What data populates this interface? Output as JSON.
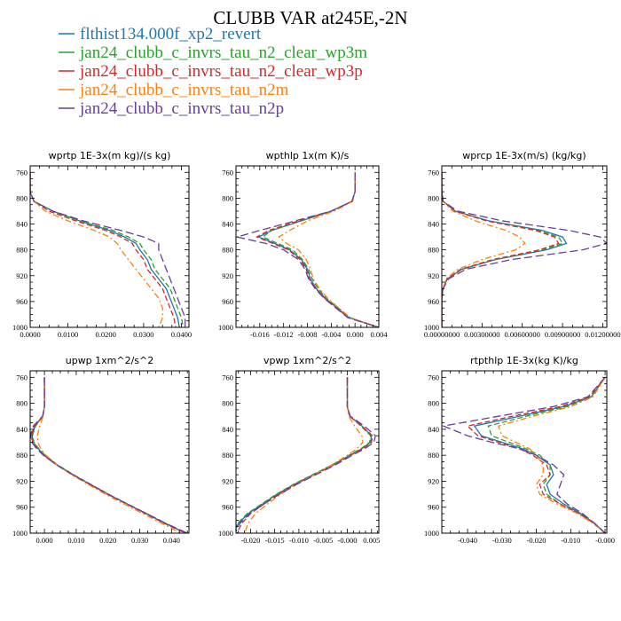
{
  "title": "CLUBB VAR at245E,-2N",
  "legend": [
    {
      "name": "flthist134.000f_xp2_revert",
      "color": "#1f77b4",
      "dash": "solid"
    },
    {
      "name": "jan24_clubb_c_invrs_tau_n2_clear_wp3m",
      "color": "#2ca02c",
      "dash": "dashed"
    },
    {
      "name": "jan24_clubb_c_invrs_tau_n2_clear_wp3p",
      "color": "#d62728",
      "dash": "dashed"
    },
    {
      "name": "jan24_clubb_c_invrs_tau_n2m",
      "color": "#ff7f0e",
      "dash": "dashdot"
    },
    {
      "name": "jan24_clubb_c_invrs_tau_n2p",
      "color": "#6a3d9a",
      "dash": "longdash"
    }
  ],
  "chart_data": [
    {
      "type": "line",
      "title": "wprtp  1E-3x(m kg)/(s kg)",
      "xlim": [
        0.0,
        0.042
      ],
      "ylim": [
        1000,
        750
      ],
      "xticks": [
        0.0,
        0.01,
        0.02,
        0.03,
        0.04
      ],
      "xtick_labels": [
        "0.0000",
        "0.0100",
        "0.0200",
        "0.0300",
        "0.0400"
      ],
      "yticks": [
        760,
        800,
        840,
        880,
        920,
        960,
        1000
      ],
      "levels": [
        760,
        790,
        805,
        820,
        835,
        850,
        860,
        870,
        880,
        895,
        910,
        925,
        940,
        955,
        970,
        985,
        1000
      ],
      "series": [
        {
          "name": "flthist134.000f_xp2_revert",
          "values": [
            0.0,
            0.0,
            0.001,
            0.006,
            0.013,
            0.021,
            0.025,
            0.028,
            0.029,
            0.031,
            0.032,
            0.034,
            0.036,
            0.037,
            0.038,
            0.039,
            0.0395
          ]
        },
        {
          "name": "jan24_clubb_c_invrs_tau_n2_clear_wp3m",
          "values": [
            0.0,
            0.0,
            0.001,
            0.006,
            0.013,
            0.022,
            0.026,
            0.029,
            0.03,
            0.032,
            0.033,
            0.035,
            0.037,
            0.038,
            0.039,
            0.04,
            0.0405
          ]
        },
        {
          "name": "jan24_clubb_c_invrs_tau_n2_clear_wp3p",
          "values": [
            0.0,
            0.0,
            0.001,
            0.005,
            0.012,
            0.02,
            0.024,
            0.027,
            0.028,
            0.03,
            0.031,
            0.033,
            0.035,
            0.036,
            0.037,
            0.038,
            0.0385
          ]
        },
        {
          "name": "jan24_clubb_c_invrs_tau_n2m",
          "values": [
            0.0,
            0.0,
            0.001,
            0.004,
            0.01,
            0.017,
            0.021,
            0.023,
            0.024,
            0.026,
            0.028,
            0.03,
            0.032,
            0.034,
            0.035,
            0.035,
            0.034
          ]
        },
        {
          "name": "jan24_clubb_c_invrs_tau_n2p",
          "values": [
            0.0,
            0.0,
            0.001,
            0.006,
            0.014,
            0.024,
            0.03,
            0.034,
            0.034,
            0.035,
            0.036,
            0.037,
            0.038,
            0.039,
            0.04,
            0.041,
            0.041
          ]
        }
      ]
    },
    {
      "type": "line",
      "title": "wpthlp  1x(m K)/s",
      "xlim": [
        -0.02,
        0.004
      ],
      "ylim": [
        1000,
        750
      ],
      "xticks": [
        -0.016,
        -0.012,
        -0.008,
        -0.004,
        0.0,
        0.004
      ],
      "xtick_labels": [
        "-0.016",
        "-0.012",
        "-0.008",
        "-0.004",
        "0.000",
        "0.004"
      ],
      "yticks": [
        760,
        800,
        840,
        880,
        920,
        960,
        1000
      ],
      "levels": [
        760,
        790,
        805,
        820,
        835,
        850,
        860,
        870,
        880,
        895,
        910,
        925,
        940,
        955,
        970,
        985,
        1000
      ],
      "series": [
        {
          "name": "flthist134.000f_xp2_revert",
          "values": [
            0.0,
            0.0,
            -0.0005,
            -0.004,
            -0.009,
            -0.014,
            -0.0162,
            -0.0135,
            -0.011,
            -0.009,
            -0.008,
            -0.0075,
            -0.0065,
            -0.005,
            -0.003,
            -0.001,
            0.004
          ]
        },
        {
          "name": "jan24_clubb_c_invrs_tau_n2_clear_wp3m",
          "values": [
            0.0,
            0.0,
            -0.0005,
            -0.004,
            -0.009,
            -0.014,
            -0.0155,
            -0.013,
            -0.0105,
            -0.0088,
            -0.0078,
            -0.0072,
            -0.0062,
            -0.0048,
            -0.0028,
            -0.0008,
            0.004
          ]
        },
        {
          "name": "jan24_clubb_c_invrs_tau_n2_clear_wp3p",
          "values": [
            0.0,
            0.0,
            -0.0005,
            -0.004,
            -0.0095,
            -0.0145,
            -0.0165,
            -0.0138,
            -0.0112,
            -0.0092,
            -0.0082,
            -0.0077,
            -0.0066,
            -0.0051,
            -0.0031,
            -0.0011,
            0.004
          ]
        },
        {
          "name": "jan24_clubb_c_invrs_tau_n2m",
          "values": [
            0.0,
            0.0,
            -0.0004,
            -0.0035,
            -0.008,
            -0.011,
            -0.0128,
            -0.0115,
            -0.0095,
            -0.0082,
            -0.0075,
            -0.007,
            -0.006,
            -0.0046,
            -0.0027,
            -0.0008,
            0.004
          ]
        },
        {
          "name": "jan24_clubb_c_invrs_tau_n2p",
          "values": [
            0.0,
            0.0,
            -0.0005,
            -0.004,
            -0.01,
            -0.016,
            -0.0198,
            -0.015,
            -0.012,
            -0.0095,
            -0.0084,
            -0.0078,
            -0.0067,
            -0.0052,
            -0.0032,
            -0.0012,
            0.004
          ]
        }
      ]
    },
    {
      "type": "line",
      "title": "wprcp  1E-3x(m/s) (kg/kg)",
      "xlim": [
        0.0,
        0.0123
      ],
      "ylim": [
        1000,
        750
      ],
      "xticks": [
        0.0,
        0.003,
        0.006,
        0.009,
        0.012
      ],
      "xtick_labels": [
        "0.00000000",
        "0.00300000",
        "0.00600000",
        "0.00900000",
        "0.01200000"
      ],
      "yticks": [
        760,
        800,
        840,
        880,
        920,
        960,
        1000
      ],
      "levels": [
        760,
        790,
        805,
        820,
        835,
        850,
        860,
        870,
        880,
        895,
        910,
        925,
        940,
        955,
        970,
        985,
        1000
      ],
      "series": [
        {
          "name": "flthist134.000f_xp2_revert",
          "values": [
            0.0,
            0.0,
            0.0001,
            0.001,
            0.0035,
            0.0075,
            0.009,
            0.0093,
            0.0078,
            0.004,
            0.0015,
            0.0004,
            0.0001,
            0.0,
            0.0,
            0.0,
            0.0
          ]
        },
        {
          "name": "jan24_clubb_c_invrs_tau_n2_clear_wp3m",
          "values": [
            0.0,
            0.0,
            0.0001,
            0.001,
            0.0034,
            0.0072,
            0.0087,
            0.009,
            0.0075,
            0.0039,
            0.0015,
            0.0004,
            0.0001,
            0.0,
            0.0,
            0.0,
            0.0
          ]
        },
        {
          "name": "jan24_clubb_c_invrs_tau_n2_clear_wp3p",
          "values": [
            0.0,
            0.0,
            0.0001,
            0.001,
            0.0033,
            0.007,
            0.0084,
            0.0087,
            0.0073,
            0.0038,
            0.0014,
            0.0004,
            0.0001,
            0.0,
            0.0,
            0.0,
            0.0
          ]
        },
        {
          "name": "jan24_clubb_c_invrs_tau_n2m",
          "values": [
            0.0,
            0.0,
            0.0001,
            0.0008,
            0.0025,
            0.0048,
            0.0058,
            0.0062,
            0.0055,
            0.003,
            0.0012,
            0.0003,
            0.0001,
            0.0,
            0.0,
            0.0,
            0.0
          ]
        },
        {
          "name": "jan24_clubb_c_invrs_tau_n2p",
          "values": [
            0.0,
            0.0,
            0.0001,
            0.0012,
            0.0045,
            0.0095,
            0.0118,
            0.0123,
            0.0105,
            0.0052,
            0.0018,
            0.0005,
            0.0001,
            0.0,
            0.0,
            0.0,
            0.0
          ]
        }
      ]
    },
    {
      "type": "line",
      "title": "upwp  1xm^2/s^2",
      "xlim": [
        -0.0045,
        0.0455
      ],
      "ylim": [
        1000,
        750
      ],
      "xticks": [
        0.0,
        0.01,
        0.02,
        0.03,
        0.04
      ],
      "xtick_labels": [
        "0.000",
        "0.010",
        "0.020",
        "0.030",
        "0.040"
      ],
      "yticks": [
        760,
        800,
        840,
        880,
        920,
        960,
        1000
      ],
      "levels": [
        760,
        790,
        805,
        820,
        835,
        850,
        860,
        870,
        880,
        895,
        910,
        925,
        940,
        955,
        970,
        985,
        1000
      ],
      "series": [
        {
          "name": "flthist134.000f_xp2_revert",
          "values": [
            0.0,
            0.0,
            0.0,
            -0.0005,
            -0.003,
            -0.004,
            -0.0035,
            -0.002,
            0.0,
            0.004,
            0.009,
            0.0145,
            0.02,
            0.026,
            0.032,
            0.038,
            0.0445
          ]
        },
        {
          "name": "jan24_clubb_c_invrs_tau_n2_clear_wp3m",
          "values": [
            0.0,
            0.0,
            0.0,
            -0.0005,
            -0.0028,
            -0.0038,
            -0.0033,
            -0.0018,
            0.0002,
            0.0042,
            0.0092,
            0.0147,
            0.0202,
            0.0262,
            0.0322,
            0.0382,
            0.0447
          ]
        },
        {
          "name": "jan24_clubb_c_invrs_tau_n2_clear_wp3p",
          "values": [
            0.0,
            0.0,
            0.0,
            -0.0005,
            -0.0032,
            -0.0042,
            -0.0037,
            -0.0022,
            -0.0002,
            0.0038,
            0.0088,
            0.0143,
            0.0198,
            0.0258,
            0.0318,
            0.0378,
            0.0443
          ]
        },
        {
          "name": "jan24_clubb_c_invrs_tau_n2m",
          "values": [
            0.0,
            0.0,
            0.0,
            -0.0004,
            -0.0015,
            -0.0022,
            -0.0021,
            -0.0012,
            0.0005,
            0.004,
            0.0085,
            0.0138,
            0.0192,
            0.025,
            0.031,
            0.037,
            0.043
          ]
        },
        {
          "name": "jan24_clubb_c_invrs_tau_n2p",
          "values": [
            0.0,
            0.0,
            0.0,
            -0.0006,
            -0.0035,
            -0.0045,
            -0.004,
            -0.0025,
            -0.0003,
            0.0038,
            0.0089,
            0.0145,
            0.0201,
            0.0261,
            0.0322,
            0.0383,
            0.045
          ]
        }
      ]
    },
    {
      "type": "line",
      "title": "vpwp  1xm^2/s^2",
      "xlim": [
        -0.023,
        0.0065
      ],
      "ylim": [
        1000,
        750
      ],
      "xticks": [
        -0.02,
        -0.015,
        -0.01,
        -0.005,
        0.0,
        0.005
      ],
      "xtick_labels": [
        "-0.020",
        "-0.015",
        "-0.010",
        "-0.005",
        "-0.000",
        "0.005"
      ],
      "yticks": [
        760,
        800,
        840,
        880,
        920,
        960,
        1000
      ],
      "levels": [
        760,
        790,
        805,
        820,
        835,
        850,
        860,
        870,
        880,
        895,
        910,
        925,
        940,
        955,
        970,
        985,
        1000
      ],
      "series": [
        {
          "name": "flthist134.000f_xp2_revert",
          "values": [
            0.0,
            0.0,
            0.0,
            0.0005,
            0.003,
            0.005,
            0.0048,
            0.003,
            0.0005,
            -0.003,
            -0.007,
            -0.011,
            -0.0145,
            -0.0175,
            -0.0205,
            -0.0225,
            -0.0235
          ]
        },
        {
          "name": "jan24_clubb_c_invrs_tau_n2_clear_wp3m",
          "values": [
            0.0,
            0.0,
            0.0,
            0.0005,
            0.0028,
            0.0048,
            0.0046,
            0.0028,
            0.0003,
            -0.0032,
            -0.0072,
            -0.0112,
            -0.0147,
            -0.0177,
            -0.0207,
            -0.0227,
            -0.0238
          ]
        },
        {
          "name": "jan24_clubb_c_invrs_tau_n2_clear_wp3p",
          "values": [
            0.0,
            0.0,
            0.0,
            0.0005,
            0.003,
            0.0052,
            0.005,
            0.0032,
            0.0007,
            -0.0028,
            -0.0068,
            -0.0108,
            -0.0143,
            -0.0172,
            -0.02,
            -0.0218,
            -0.0228
          ]
        },
        {
          "name": "jan24_clubb_c_invrs_tau_n2m",
          "values": [
            0.0,
            0.0,
            0.0,
            0.0003,
            0.0015,
            0.003,
            0.0032,
            0.002,
            0.0,
            -0.0032,
            -0.0068,
            -0.0105,
            -0.0138,
            -0.0165,
            -0.019,
            -0.0205,
            -0.0212
          ]
        },
        {
          "name": "jan24_clubb_c_invrs_tau_n2p",
          "values": [
            0.0,
            0.0,
            0.0,
            0.0006,
            0.0035,
            0.0058,
            0.0055,
            0.0036,
            0.001,
            -0.0025,
            -0.0065,
            -0.0105,
            -0.014,
            -0.0172,
            -0.0202,
            -0.0222,
            -0.0232
          ]
        }
      ]
    },
    {
      "type": "line",
      "title": "rtpthlp  1E-3x(kg K)/kg",
      "xlim": [
        -0.0475,
        0.0005
      ],
      "ylim": [
        1000,
        750
      ],
      "xticks": [
        -0.04,
        -0.03,
        -0.02,
        -0.01,
        0.0
      ],
      "xtick_labels": [
        "-0.040",
        "-0.030",
        "-0.020",
        "-0.010",
        "-0.000"
      ],
      "yticks": [
        760,
        800,
        840,
        880,
        920,
        960,
        1000
      ],
      "levels": [
        760,
        790,
        805,
        820,
        835,
        850,
        860,
        870,
        880,
        895,
        910,
        925,
        940,
        955,
        970,
        985,
        1000
      ],
      "series": [
        {
          "name": "flthist134.000f_xp2_revert",
          "values": [
            0.0,
            -0.004,
            -0.012,
            -0.025,
            -0.038,
            -0.036,
            -0.03,
            -0.024,
            -0.02,
            -0.016,
            -0.015,
            -0.017,
            -0.016,
            -0.012,
            -0.007,
            -0.003,
            0.0
          ]
        },
        {
          "name": "jan24_clubb_c_invrs_tau_n2_clear_wp3m",
          "values": [
            0.0,
            -0.004,
            -0.011,
            -0.023,
            -0.034,
            -0.033,
            -0.028,
            -0.023,
            -0.019,
            -0.016,
            -0.016,
            -0.018,
            -0.017,
            -0.013,
            -0.0075,
            -0.0032,
            0.0
          ]
        },
        {
          "name": "jan24_clubb_c_invrs_tau_n2_clear_wp3p",
          "values": [
            0.0,
            -0.0045,
            -0.013,
            -0.027,
            -0.04,
            -0.037,
            -0.031,
            -0.025,
            -0.021,
            -0.017,
            -0.016,
            -0.019,
            -0.018,
            -0.013,
            -0.0075,
            -0.0032,
            0.0
          ]
        },
        {
          "name": "jan24_clubb_c_invrs_tau_n2m",
          "values": [
            0.0,
            -0.0035,
            -0.01,
            -0.021,
            -0.031,
            -0.03,
            -0.026,
            -0.022,
            -0.02,
            -0.018,
            -0.018,
            -0.02,
            -0.019,
            -0.014,
            -0.008,
            -0.0035,
            0.0
          ]
        },
        {
          "name": "jan24_clubb_c_invrs_tau_n2p",
          "values": [
            0.0,
            -0.005,
            -0.015,
            -0.031,
            -0.047,
            -0.04,
            -0.033,
            -0.025,
            -0.02,
            -0.015,
            -0.012,
            -0.013,
            -0.014,
            -0.011,
            -0.0065,
            -0.003,
            0.0
          ]
        }
      ]
    }
  ]
}
